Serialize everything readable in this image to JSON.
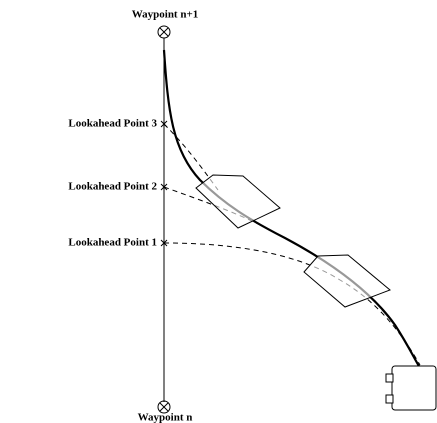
{
  "waypoints": {
    "top": "Waypoint n+1",
    "bottom": "Waypoint n"
  },
  "lookahead_points": [
    "Lookahead Point 3",
    "Lookahead Point 2",
    "Lookahead Point 1"
  ]
}
